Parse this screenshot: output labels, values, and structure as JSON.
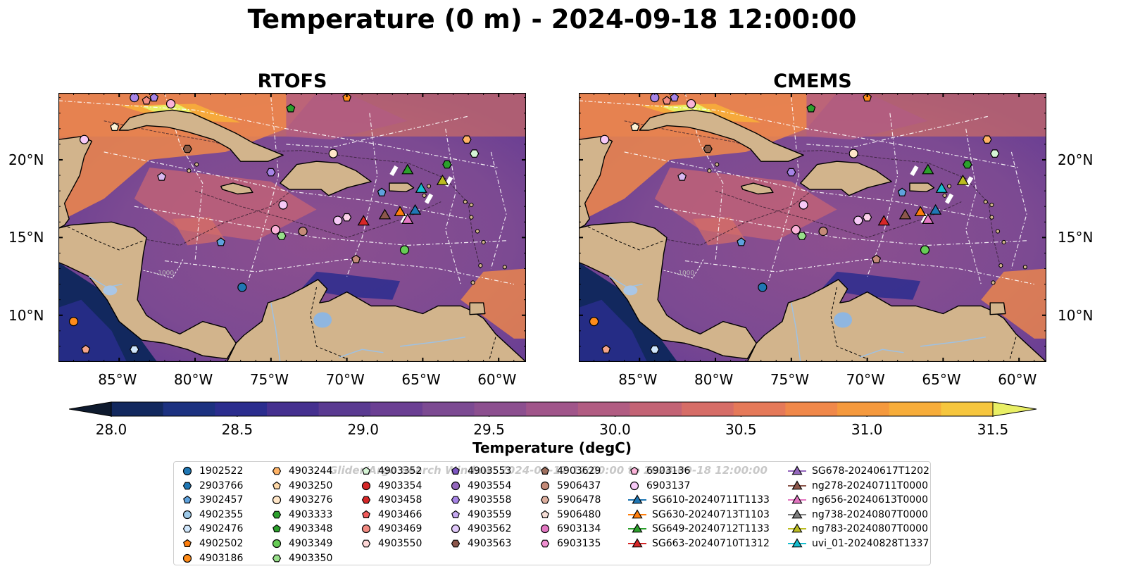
{
  "title": "Temperature (0 m) - 2024-09-18 12:00:00",
  "panels": [
    {
      "title": "RTOFS"
    },
    {
      "title": "CMEMS"
    }
  ],
  "chart_data": {
    "type": "heatmap",
    "title": "Temperature (0 m) - 2024-09-18 12:00:00",
    "variable": "Temperature",
    "panels": [
      "RTOFS",
      "CMEMS"
    ],
    "x_ticks": [
      "85°W",
      "80°W",
      "75°W",
      "70°W",
      "65°W",
      "60°W"
    ],
    "x_values": [
      -85,
      -80,
      -75,
      -70,
      -65,
      -60
    ],
    "y_ticks": [
      "20°N",
      "15°N",
      "10°N"
    ],
    "y_values": [
      20,
      15,
      10
    ],
    "xlim": [
      -89,
      -58.2
    ],
    "ylim": [
      7,
      24.3
    ],
    "contour_labels": [
      "-1000"
    ],
    "colorbar": {
      "label": "Temperature (degC)",
      "ticks": [
        "28.0",
        "28.5",
        "29.0",
        "29.5",
        "30.0",
        "30.5",
        "31.0",
        "31.5"
      ],
      "min": 28.0,
      "max": 31.5,
      "step": 0.25,
      "extend": "both",
      "colors": [
        "#0e1a2e",
        "#12285e",
        "#1c3180",
        "#2b2d8e",
        "#45308f",
        "#5a3a91",
        "#6b3f93",
        "#7c4a92",
        "#8c4f8f",
        "#a0558a",
        "#b15c82",
        "#c36375",
        "#d66d67",
        "#e57959",
        "#f0884a",
        "#f5993d",
        "#f7ad3a",
        "#f6c63e",
        "#e9ef65"
      ]
    },
    "platforms": [
      {
        "lon": -87.2,
        "lat": 7.8,
        "color": "#f5a58a",
        "shape": "pentagon",
        "panel": "both"
      },
      {
        "lon": -84.0,
        "lat": 7.8,
        "color": "#cfe6fb",
        "shape": "hexagon",
        "panel": "both"
      },
      {
        "lon": -88.0,
        "lat": 9.6,
        "color": "#ff8c1a",
        "shape": "circle",
        "panel": "both"
      },
      {
        "lon": -85.3,
        "lat": 22.1,
        "color": "#fff3d6",
        "shape": "pentagon",
        "panel": "both"
      },
      {
        "lon": -87.3,
        "lat": 21.3,
        "color": "#f7c9f7",
        "shape": "circle",
        "panel": "both"
      },
      {
        "lon": -84.0,
        "lat": 24.0,
        "color": "#a784e6",
        "shape": "circle",
        "panel": "both"
      },
      {
        "lon": -83.2,
        "lat": 23.8,
        "color": "#f28b82",
        "shape": "pentagon",
        "panel": "both"
      },
      {
        "lon": -82.7,
        "lat": 24.0,
        "color": "#a784e6",
        "shape": "pentagon",
        "panel": "both"
      },
      {
        "lon": -81.6,
        "lat": 23.6,
        "color": "#fbb3d9",
        "shape": "circle",
        "panel": "both"
      },
      {
        "lon": -80.5,
        "lat": 20.7,
        "color": "#8a5a44",
        "shape": "hexagon",
        "panel": "both"
      },
      {
        "lon": -82.2,
        "lat": 18.9,
        "color": "#d9b8f2",
        "shape": "pentagon",
        "panel": "both"
      },
      {
        "lon": -70.0,
        "lat": 24.0,
        "color": "#ff8c1a",
        "shape": "pentagon",
        "panel": "both"
      },
      {
        "lon": -73.7,
        "lat": 23.3,
        "color": "#2ca02c",
        "shape": "pentagon",
        "panel": "both"
      },
      {
        "lon": -75.0,
        "lat": 19.2,
        "color": "#a784e6",
        "shape": "hexagon",
        "panel": "both"
      },
      {
        "lon": -70.9,
        "lat": 20.4,
        "color": "#ffe6c8",
        "shape": "circle",
        "panel": "both"
      },
      {
        "lon": -62.1,
        "lat": 21.3,
        "color": "#ffb366",
        "shape": "hexagon",
        "panel": "both"
      },
      {
        "lon": -61.6,
        "lat": 20.4,
        "color": "#d6f5d6",
        "shape": "hexagon",
        "panel": "both"
      },
      {
        "lon": -63.4,
        "lat": 19.7,
        "color": "#2ca02c",
        "shape": "hexagon",
        "panel": "both"
      },
      {
        "lon": -66.0,
        "lat": 19.3,
        "color": "#2ca02c",
        "shape": "triangle",
        "panel": "both"
      },
      {
        "lon": -63.7,
        "lat": 18.6,
        "color": "#bcbd22",
        "shape": "triangle",
        "panel": "both"
      },
      {
        "lon": -65.1,
        "lat": 18.1,
        "color": "#17becf",
        "shape": "triangle",
        "panel": "both"
      },
      {
        "lon": -67.7,
        "lat": 17.9,
        "color": "#5fa2dd",
        "shape": "pentagon",
        "panel": "both"
      },
      {
        "lon": -74.2,
        "lat": 17.1,
        "color": "#f7c9f7",
        "shape": "circle",
        "panel": "both"
      },
      {
        "lon": -74.7,
        "lat": 15.5,
        "color": "#fbb3d9",
        "shape": "circle",
        "panel": "both"
      },
      {
        "lon": -74.3,
        "lat": 15.1,
        "color": "#98df8a",
        "shape": "hexagon",
        "panel": "both"
      },
      {
        "lon": -72.9,
        "lat": 15.4,
        "color": "#c48a78",
        "shape": "circle",
        "panel": "both"
      },
      {
        "lon": -70.6,
        "lat": 16.1,
        "color": "#f7c9f7",
        "shape": "circle",
        "panel": "both"
      },
      {
        "lon": -70.0,
        "lat": 16.3,
        "color": "#fbd0e8",
        "shape": "hexagon",
        "panel": "both"
      },
      {
        "lon": -68.9,
        "lat": 16.0,
        "color": "#d62728",
        "shape": "triangle",
        "panel": "both"
      },
      {
        "lon": -67.5,
        "lat": 16.4,
        "color": "#8c564b",
        "shape": "triangle",
        "panel": "both"
      },
      {
        "lon": -66.5,
        "lat": 16.6,
        "color": "#ff7f0e",
        "shape": "triangle",
        "panel": "both"
      },
      {
        "lon": -65.5,
        "lat": 16.7,
        "color": "#1f77b4",
        "shape": "triangle",
        "panel": "both"
      },
      {
        "lon": -66.0,
        "lat": 16.1,
        "color": "#e377c2",
        "shape": "triangle",
        "panel": "both"
      },
      {
        "lon": -78.3,
        "lat": 14.7,
        "color": "#5fa2dd",
        "shape": "pentagon",
        "panel": "both"
      },
      {
        "lon": -69.4,
        "lat": 13.6,
        "color": "#c48a78",
        "shape": "pentagon",
        "panel": "both"
      },
      {
        "lon": -66.2,
        "lat": 14.2,
        "color": "#66cc55",
        "shape": "circle",
        "panel": "both"
      },
      {
        "lon": -76.9,
        "lat": 11.8,
        "color": "#1f77b4",
        "shape": "circle",
        "panel": "both"
      }
    ]
  },
  "legend": {
    "watermark": "Glider/Argo Search Window: 2024-09-17 12:00:00 to 2024-09-18 12:00:00",
    "items": [
      {
        "label": "1902522",
        "shape": "circle",
        "color": "#1f77b4"
      },
      {
        "label": "2903766",
        "shape": "hexagon",
        "color": "#1f77b4"
      },
      {
        "label": "3902457",
        "shape": "pentagon",
        "color": "#5fa2dd"
      },
      {
        "label": "4902355",
        "shape": "circle",
        "color": "#9ecae9"
      },
      {
        "label": "4902476",
        "shape": "hexagon",
        "color": "#cfe6fb"
      },
      {
        "label": "4902502",
        "shape": "pentagon",
        "color": "#ff7f0e"
      },
      {
        "label": "4903186",
        "shape": "circle",
        "color": "#ff8c1a"
      },
      {
        "label": "4903244",
        "shape": "hexagon",
        "color": "#ffb366"
      },
      {
        "label": "4903250",
        "shape": "pentagon",
        "color": "#ffd9a8"
      },
      {
        "label": "4903276",
        "shape": "circle",
        "color": "#ffe6c8"
      },
      {
        "label": "4903333",
        "shape": "hexagon",
        "color": "#2ca02c"
      },
      {
        "label": "4903348",
        "shape": "pentagon",
        "color": "#2ca02c"
      },
      {
        "label": "4903349",
        "shape": "circle",
        "color": "#66cc55"
      },
      {
        "label": "4903350",
        "shape": "hexagon",
        "color": "#98df8a"
      },
      {
        "label": "4903352",
        "shape": "pentagon",
        "color": "#d6f5d6"
      },
      {
        "label": "4903354",
        "shape": "circle",
        "color": "#d62728"
      },
      {
        "label": "4903458",
        "shape": "hexagon",
        "color": "#d62728"
      },
      {
        "label": "4903466",
        "shape": "pentagon",
        "color": "#f25c5c"
      },
      {
        "label": "4903469",
        "shape": "circle",
        "color": "#f28b82"
      },
      {
        "label": "4903550",
        "shape": "hexagon",
        "color": "#fcd5d5"
      },
      {
        "label": "4903553",
        "shape": "pentagon",
        "color": "#7e57c2"
      },
      {
        "label": "4903554",
        "shape": "circle",
        "color": "#9467bd"
      },
      {
        "label": "4903558",
        "shape": "hexagon",
        "color": "#a784e6"
      },
      {
        "label": "4903559",
        "shape": "pentagon",
        "color": "#c5a8f0"
      },
      {
        "label": "4903562",
        "shape": "circle",
        "color": "#e0c8fa"
      },
      {
        "label": "4903563",
        "shape": "hexagon",
        "color": "#8c564b"
      },
      {
        "label": "4903629",
        "shape": "pentagon",
        "color": "#a0705f"
      },
      {
        "label": "5906437",
        "shape": "circle",
        "color": "#c48a78"
      },
      {
        "label": "5906478",
        "shape": "hexagon",
        "color": "#dcae9e"
      },
      {
        "label": "5906480",
        "shape": "pentagon",
        "color": "#f7dfd7"
      },
      {
        "label": "6903134",
        "shape": "circle",
        "color": "#e377c2"
      },
      {
        "label": "6903135",
        "shape": "hexagon",
        "color": "#ef8fd0"
      },
      {
        "label": "6903136",
        "shape": "pentagon",
        "color": "#fbb3d9"
      },
      {
        "label": "6903137",
        "shape": "circle",
        "color": "#f7c9f7"
      },
      {
        "label": "SG610-20240711T1133",
        "shape": "triangle",
        "color": "#1f77b4"
      },
      {
        "label": "SG630-20240713T1103",
        "shape": "triangle",
        "color": "#ff7f0e"
      },
      {
        "label": "SG649-20240712T1133",
        "shape": "triangle",
        "color": "#2ca02c"
      },
      {
        "label": "SG663-20240710T1312",
        "shape": "triangle",
        "color": "#d62728"
      },
      {
        "label": "SG678-20240617T1202",
        "shape": "triangle",
        "color": "#9467bd"
      },
      {
        "label": "ng278-20240711T0000",
        "shape": "triangle",
        "color": "#8c564b"
      },
      {
        "label": "ng656-20240613T0000",
        "shape": "triangle",
        "color": "#e377c2"
      },
      {
        "label": "ng738-20240807T0000",
        "shape": "triangle",
        "color": "#7f7f7f"
      },
      {
        "label": "ng783-20240807T0000",
        "shape": "triangle",
        "color": "#bcbd22"
      },
      {
        "label": "uvi_01-20240828T1337",
        "shape": "triangle",
        "color": "#17becf"
      }
    ]
  }
}
